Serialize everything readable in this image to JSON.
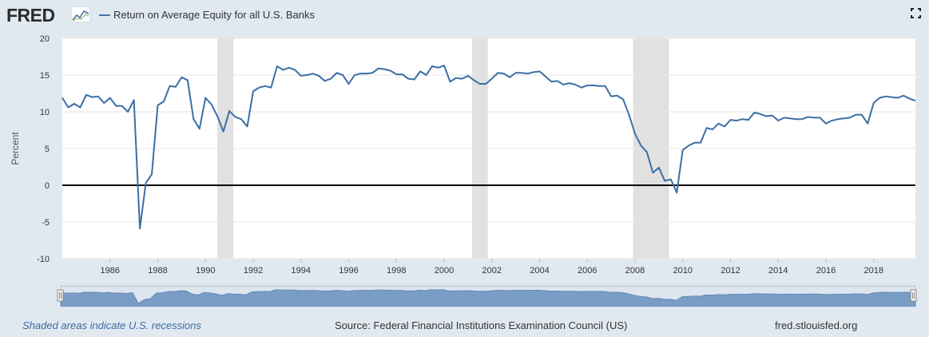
{
  "header": {
    "logo_text": "FRED",
    "series_title": "Return on Average Equity for all U.S. Banks"
  },
  "footer": {
    "recession_note": "Shaded areas indicate U.S. recessions",
    "source": "Source: Federal Financial Institutions Examination Council (US)",
    "url": "fred.stlouisfed.org"
  },
  "colors": {
    "line": "#3a6fa5",
    "recession": "#e1e1e1",
    "zero_line": "#000000",
    "navigator_fill": "#7b9fc8",
    "background": "#e1e9f0"
  },
  "chart_data": {
    "type": "line",
    "ylabel": "Percent",
    "ylim": [
      -10,
      20
    ],
    "yticks": [
      -10,
      -5,
      0,
      5,
      10,
      15,
      20
    ],
    "xlim": [
      1984.0,
      2019.75
    ],
    "xticks": [
      1986,
      1988,
      1990,
      1992,
      1994,
      1996,
      1998,
      2000,
      2002,
      2004,
      2006,
      2008,
      2010,
      2012,
      2014,
      2016,
      2018
    ],
    "grid": true,
    "zero_line": true,
    "recessions": [
      [
        1990.5,
        1991.17
      ],
      [
        2001.17,
        2001.83
      ],
      [
        2007.92,
        2009.42
      ]
    ],
    "series": [
      {
        "values": [
          [
            1984.0,
            11.9
          ],
          [
            1984.25,
            10.6
          ],
          [
            1984.5,
            11.1
          ],
          [
            1984.75,
            10.6
          ],
          [
            1985.0,
            12.3
          ],
          [
            1985.25,
            12.0
          ],
          [
            1985.5,
            12.1
          ],
          [
            1985.75,
            11.2
          ],
          [
            1986.0,
            11.9
          ],
          [
            1986.25,
            10.8
          ],
          [
            1986.5,
            10.8
          ],
          [
            1986.75,
            10.0
          ],
          [
            1987.0,
            11.6
          ],
          [
            1987.25,
            -5.9
          ],
          [
            1987.5,
            0.3
          ],
          [
            1987.75,
            1.5
          ],
          [
            1988.0,
            10.9
          ],
          [
            1988.25,
            11.4
          ],
          [
            1988.5,
            13.5
          ],
          [
            1988.75,
            13.4
          ],
          [
            1989.0,
            14.7
          ],
          [
            1989.25,
            14.3
          ],
          [
            1989.5,
            9.0
          ],
          [
            1989.75,
            7.7
          ],
          [
            1990.0,
            11.9
          ],
          [
            1990.25,
            11.0
          ],
          [
            1990.5,
            9.4
          ],
          [
            1990.75,
            7.3
          ],
          [
            1991.0,
            10.1
          ],
          [
            1991.25,
            9.3
          ],
          [
            1991.5,
            9.0
          ],
          [
            1991.75,
            8.0
          ],
          [
            1992.0,
            12.8
          ],
          [
            1992.25,
            13.3
          ],
          [
            1992.5,
            13.5
          ],
          [
            1992.75,
            13.3
          ],
          [
            1993.0,
            16.2
          ],
          [
            1993.25,
            15.7
          ],
          [
            1993.5,
            16.0
          ],
          [
            1993.75,
            15.7
          ],
          [
            1994.0,
            14.9
          ],
          [
            1994.25,
            15.0
          ],
          [
            1994.5,
            15.2
          ],
          [
            1994.75,
            14.9
          ],
          [
            1995.0,
            14.2
          ],
          [
            1995.25,
            14.5
          ],
          [
            1995.5,
            15.3
          ],
          [
            1995.75,
            15.0
          ],
          [
            1996.0,
            13.8
          ],
          [
            1996.25,
            15.0
          ],
          [
            1996.5,
            15.2
          ],
          [
            1996.75,
            15.2
          ],
          [
            1997.0,
            15.3
          ],
          [
            1997.25,
            15.9
          ],
          [
            1997.5,
            15.8
          ],
          [
            1997.75,
            15.6
          ],
          [
            1998.0,
            15.1
          ],
          [
            1998.25,
            15.1
          ],
          [
            1998.5,
            14.5
          ],
          [
            1998.75,
            14.4
          ],
          [
            1999.0,
            15.5
          ],
          [
            1999.25,
            15.0
          ],
          [
            1999.5,
            16.2
          ],
          [
            1999.75,
            16.0
          ],
          [
            2000.0,
            16.3
          ],
          [
            2000.25,
            14.1
          ],
          [
            2000.5,
            14.6
          ],
          [
            2000.75,
            14.5
          ],
          [
            2001.0,
            14.9
          ],
          [
            2001.25,
            14.3
          ],
          [
            2001.5,
            13.8
          ],
          [
            2001.75,
            13.8
          ],
          [
            2002.0,
            14.5
          ],
          [
            2002.25,
            15.3
          ],
          [
            2002.5,
            15.2
          ],
          [
            2002.75,
            14.7
          ],
          [
            2003.0,
            15.3
          ],
          [
            2003.25,
            15.3
          ],
          [
            2003.5,
            15.2
          ],
          [
            2003.75,
            15.4
          ],
          [
            2004.0,
            15.5
          ],
          [
            2004.25,
            14.8
          ],
          [
            2004.5,
            14.1
          ],
          [
            2004.75,
            14.2
          ],
          [
            2005.0,
            13.7
          ],
          [
            2005.25,
            13.9
          ],
          [
            2005.5,
            13.7
          ],
          [
            2005.75,
            13.3
          ],
          [
            2006.0,
            13.6
          ],
          [
            2006.25,
            13.6
          ],
          [
            2006.5,
            13.5
          ],
          [
            2006.75,
            13.5
          ],
          [
            2007.0,
            12.1
          ],
          [
            2007.25,
            12.2
          ],
          [
            2007.5,
            11.7
          ],
          [
            2007.75,
            9.6
          ],
          [
            2008.0,
            7.0
          ],
          [
            2008.25,
            5.4
          ],
          [
            2008.5,
            4.5
          ],
          [
            2008.75,
            1.7
          ],
          [
            2009.0,
            2.4
          ],
          [
            2009.25,
            0.6
          ],
          [
            2009.5,
            0.8
          ],
          [
            2009.75,
            -1.0
          ],
          [
            2010.0,
            4.8
          ],
          [
            2010.25,
            5.4
          ],
          [
            2010.5,
            5.8
          ],
          [
            2010.75,
            5.8
          ],
          [
            2011.0,
            7.8
          ],
          [
            2011.25,
            7.6
          ],
          [
            2011.5,
            8.4
          ],
          [
            2011.75,
            8.0
          ],
          [
            2012.0,
            8.9
          ],
          [
            2012.25,
            8.8
          ],
          [
            2012.5,
            9.0
          ],
          [
            2012.75,
            8.9
          ],
          [
            2013.0,
            9.9
          ],
          [
            2013.25,
            9.7
          ],
          [
            2013.5,
            9.4
          ],
          [
            2013.75,
            9.5
          ],
          [
            2014.0,
            8.8
          ],
          [
            2014.25,
            9.2
          ],
          [
            2014.5,
            9.1
          ],
          [
            2014.75,
            9.0
          ],
          [
            2015.0,
            9.0
          ],
          [
            2015.25,
            9.3
          ],
          [
            2015.5,
            9.2
          ],
          [
            2015.75,
            9.2
          ],
          [
            2016.0,
            8.4
          ],
          [
            2016.25,
            8.8
          ],
          [
            2016.5,
            9.0
          ],
          [
            2016.75,
            9.1
          ],
          [
            2017.0,
            9.2
          ],
          [
            2017.25,
            9.6
          ],
          [
            2017.5,
            9.6
          ],
          [
            2017.75,
            8.4
          ],
          [
            2018.0,
            11.2
          ],
          [
            2018.25,
            11.9
          ],
          [
            2018.5,
            12.1
          ],
          [
            2018.75,
            12.0
          ],
          [
            2019.0,
            11.9
          ],
          [
            2019.25,
            12.2
          ],
          [
            2019.5,
            11.8
          ],
          [
            2019.75,
            11.5
          ]
        ]
      }
    ]
  }
}
